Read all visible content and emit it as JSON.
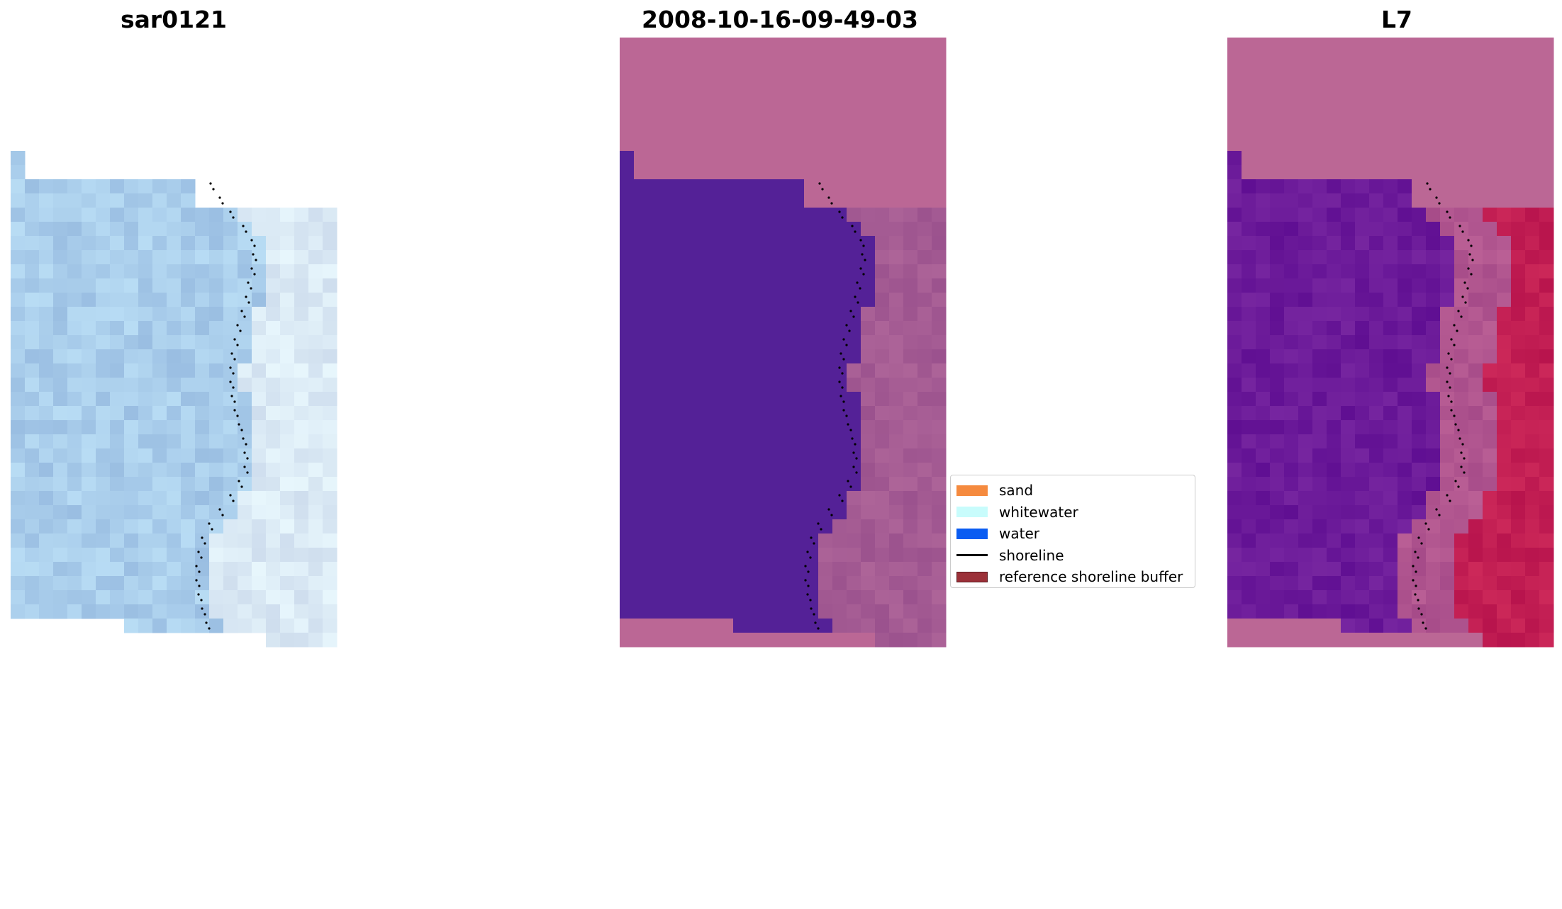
{
  "panels": [
    {
      "title": "sar0121"
    },
    {
      "title": "2008-10-16-09-49-03"
    },
    {
      "title": "L7"
    }
  ],
  "legend": {
    "items": [
      {
        "label": "sand",
        "color": "#f58a3e",
        "kind": "patch"
      },
      {
        "label": "whitewater",
        "color": "#c8fcfc",
        "kind": "patch"
      },
      {
        "label": "water",
        "color": "#0a5cf2",
        "kind": "patch"
      },
      {
        "label": "shoreline",
        "color": "#000000",
        "kind": "line"
      },
      {
        "label": "reference shoreline buffer",
        "color": "#9b3038",
        "kind": "patch",
        "edge": "#5a1a20"
      }
    ]
  },
  "colors": {
    "sar_water": "#a9cdeb",
    "sar_land": "#dbeaf5",
    "classified_water": "#542197",
    "classified_land": "#bb6795",
    "classified_land_dark": "#a45b93",
    "l7_water": "#6b1a99",
    "l7_buffer": "#b0558f",
    "l7_land": "#c21e53",
    "background_pink": "#bb6795",
    "shoreline_dots": "#000000"
  }
}
